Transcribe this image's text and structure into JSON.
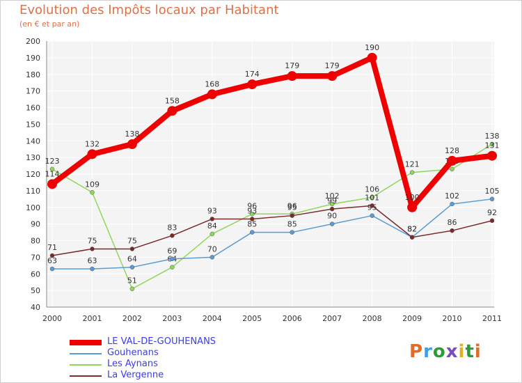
{
  "title": "Evolution des Impôts locaux par Habitant",
  "subtitle": "(en € et par an)",
  "logo": {
    "text": "Proxiti",
    "letters": [
      "P",
      "r",
      "o",
      "x",
      "i",
      "t",
      "i"
    ],
    "colors": [
      "#e06c2a",
      "#3da0e0",
      "#2e9a3a",
      "#7a4ac0",
      "#e0b020",
      "#2e9a3a",
      "#e06c2a"
    ]
  },
  "chart_data": {
    "type": "line",
    "title": "Evolution des Impôts locaux par Habitant",
    "ylabel": "(en € et par an)",
    "ylim": [
      40,
      200
    ],
    "yticks": [
      40,
      50,
      60,
      70,
      80,
      90,
      100,
      110,
      120,
      130,
      140,
      150,
      160,
      170,
      180,
      190,
      200
    ],
    "categories": [
      "2000",
      "2001",
      "2002",
      "2003",
      "2004",
      "2005",
      "2006",
      "2007",
      "2008",
      "2009",
      "2010",
      "2011"
    ],
    "grid": true,
    "series": [
      {
        "name": "Les Aynans",
        "color": "#8fd65a",
        "values": [
          123,
          109,
          51,
          64,
          84,
          96,
          96,
          102,
          106,
          121,
          123,
          138
        ],
        "labels": [
          "123",
          "109",
          "51",
          "64",
          "84",
          "96",
          "96",
          "102",
          "106",
          "121",
          "123",
          "138"
        ]
      },
      {
        "name": "Gouhenans",
        "color": "#5b9bd1",
        "values": [
          63,
          63,
          64,
          69,
          70,
          85,
          85,
          90,
          95,
          82,
          102,
          105
        ],
        "labels": [
          "63",
          "63",
          "64",
          "69",
          "70",
          "85",
          "85",
          "90",
          "95",
          "82",
          "102",
          "105"
        ]
      },
      {
        "name": "La Vergenne",
        "color": "#7a2a2a",
        "values": [
          71,
          75,
          75,
          83,
          93,
          93,
          95,
          99,
          101,
          82,
          86,
          92
        ],
        "labels": [
          "71",
          "75",
          "75",
          "83",
          "93",
          "93",
          "95",
          "99",
          "101",
          "82",
          "86",
          "92"
        ]
      },
      {
        "name": "LE VAL-DE-GOUHENANS",
        "color": "#ee0000",
        "values": [
          114,
          132,
          138,
          158,
          168,
          174,
          179,
          179,
          190,
          100,
          128,
          131
        ],
        "labels": [
          "114",
          "132",
          "138",
          "158",
          "168",
          "174",
          "179",
          "179",
          "190",
          "100",
          "128",
          "131"
        ]
      }
    ],
    "legend": [
      "LE VAL-DE-GOUHENANS",
      "Gouhenans",
      "Les Aynans",
      "La Vergenne"
    ]
  }
}
